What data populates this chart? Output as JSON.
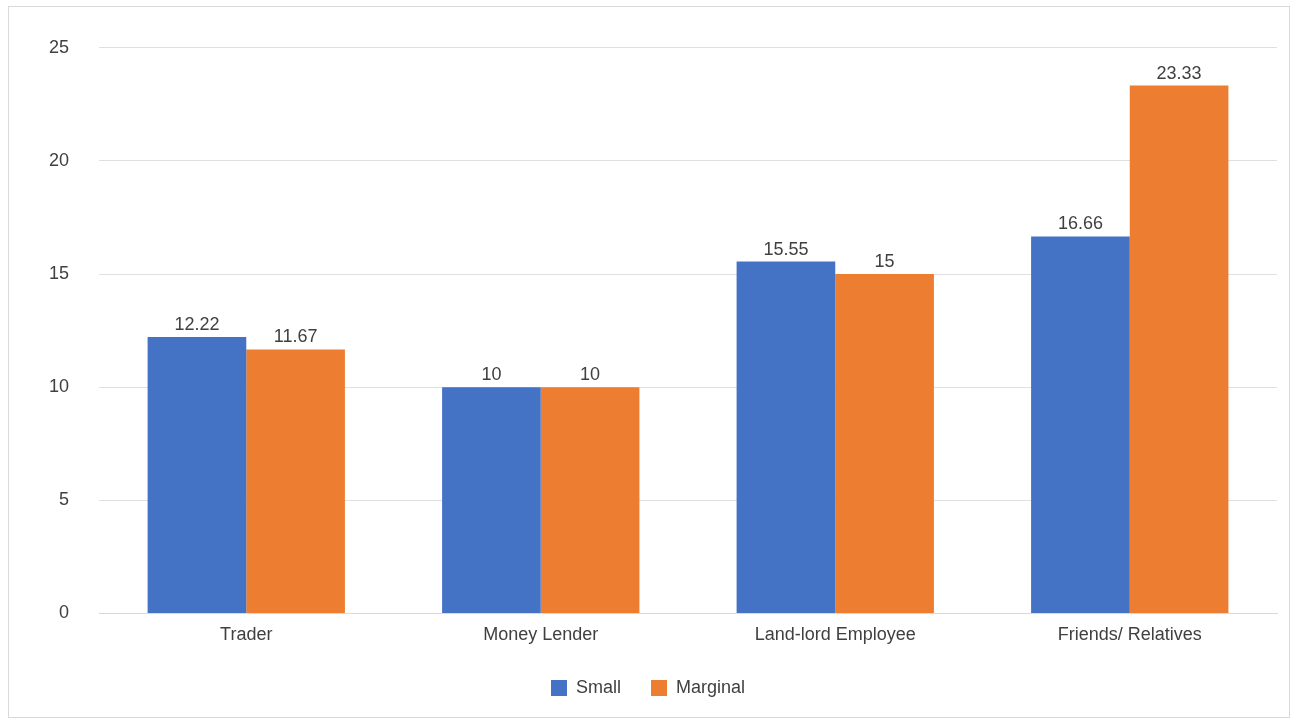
{
  "chart_data": {
    "type": "bar",
    "categories": [
      "Trader",
      "Money Lender",
      "Land-lord Employee",
      "Friends/ Relatives"
    ],
    "series": [
      {
        "name": "Small",
        "color": "#4472c4",
        "values": [
          12.22,
          10,
          15.55,
          16.66
        ]
      },
      {
        "name": "Marginal",
        "color": "#ed7d31",
        "values": [
          11.67,
          10,
          15,
          23.33
        ]
      }
    ],
    "ylim": [
      0,
      25
    ],
    "yticks": [
      0,
      5,
      10,
      15,
      20,
      25
    ],
    "grid": "y",
    "legend": "bottom",
    "data_labels": true
  }
}
